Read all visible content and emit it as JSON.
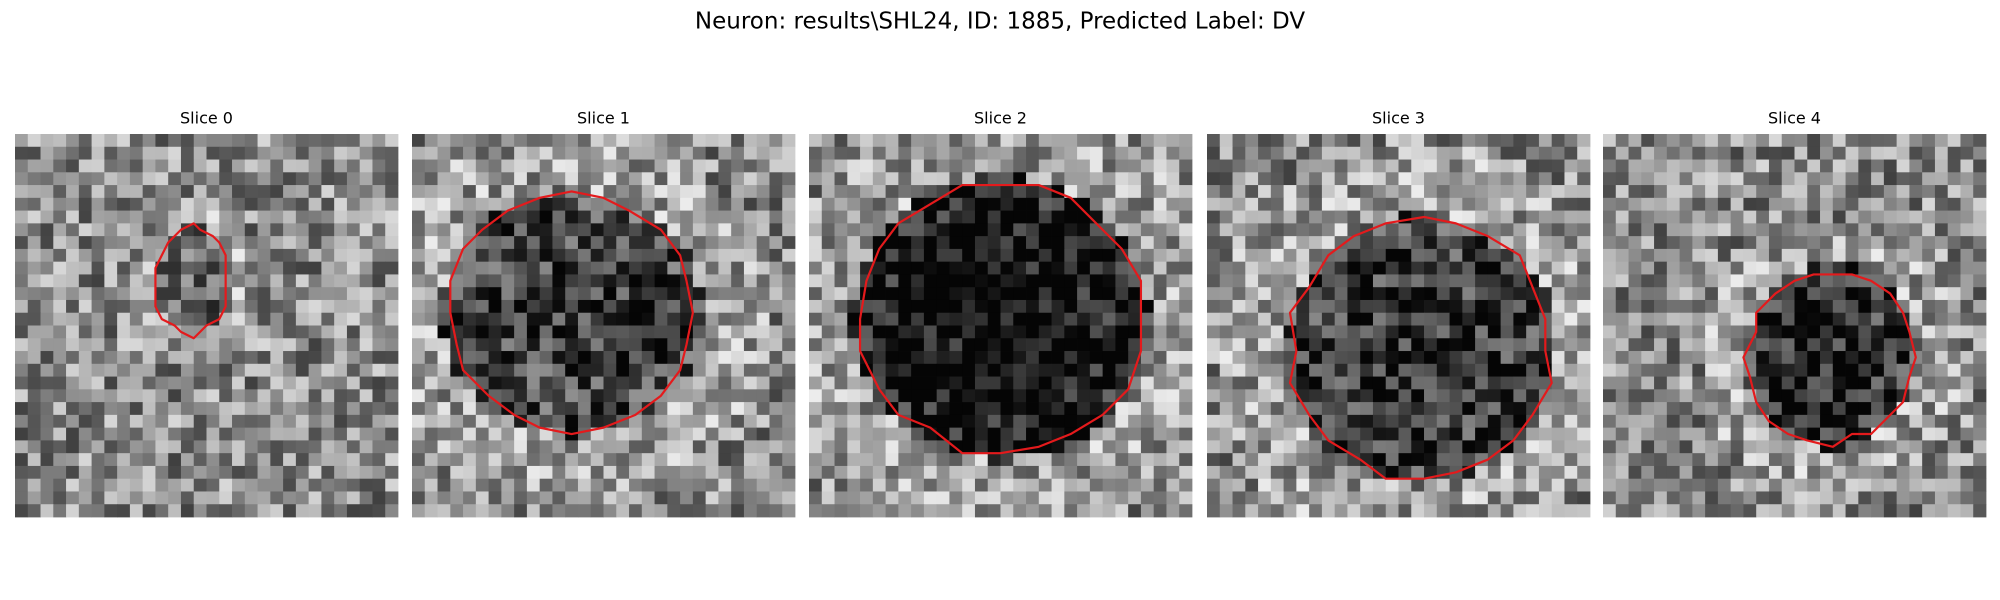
{
  "title": "Neuron: results\\SHL24, ID: 1885, Predicted Label: DV",
  "panels": [
    {
      "title": "Slice 0"
    },
    {
      "title": "Slice 1"
    },
    {
      "title": "Slice 2"
    },
    {
      "title": "Slice 3"
    },
    {
      "title": "Slice 4"
    }
  ]
}
